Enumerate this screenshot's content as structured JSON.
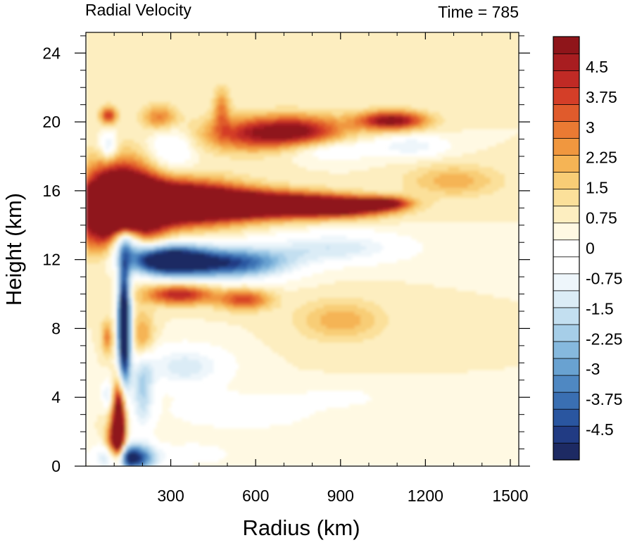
{
  "chart_data": {
    "type": "heatmap",
    "title": "Radial Velocity",
    "subtitle": "Time = 785",
    "xlabel": "Radius (km)",
    "ylabel": "Height (km)",
    "xlim": [
      0,
      1530
    ],
    "ylim": [
      0,
      25.2
    ],
    "xticks": [
      300,
      600,
      900,
      1200,
      1500
    ],
    "yticks": [
      0,
      4,
      8,
      12,
      16,
      20,
      24
    ],
    "y_minor_step": 1,
    "x_minor_step": 100,
    "colorbar": {
      "levels_min": -5.25,
      "levels_max": 5.25,
      "level_step": 0.375,
      "tick_labels": [
        "4.5",
        "3.75",
        "3",
        "2.25",
        "1.5",
        "0.75",
        "0",
        "-0.75",
        "-1.5",
        "-2.25",
        "-3",
        "-3.75",
        "-4.5"
      ],
      "tick_values": [
        4.5,
        3.75,
        3,
        2.25,
        1.5,
        0.75,
        0,
        -0.75,
        -1.5,
        -2.25,
        -3,
        -3.75,
        -4.5
      ],
      "colors": [
        "#1d2a63",
        "#213b83",
        "#2a56a0",
        "#3a6fb2",
        "#4f88c2",
        "#69a2d1",
        "#86b9de",
        "#a6cee8",
        "#c3dff0",
        "#dbecf6",
        "#eef6fb",
        "#ffffff",
        "#ffffff",
        "#fff9e3",
        "#fdeec0",
        "#fbe09a",
        "#f8cd76",
        "#f5b455",
        "#f0973f",
        "#ea7a33",
        "#e05b2c",
        "#d43e28",
        "#c02a25",
        "#a81d20",
        "#8f151a"
      ]
    },
    "features": [
      {
        "r": 120,
        "z": 15.0,
        "sr": 130,
        "sz": 2.3,
        "v": 9.0
      },
      {
        "r": 330,
        "z": 15.3,
        "sr": 220,
        "sz": 1.2,
        "v": 7.0
      },
      {
        "r": 620,
        "z": 15.2,
        "sr": 260,
        "sz": 0.75,
        "v": 6.0
      },
      {
        "r": 900,
        "z": 15.1,
        "sr": 180,
        "sz": 0.55,
        "v": 5.0
      },
      {
        "r": 1060,
        "z": 15.3,
        "sr": 80,
        "sz": 0.35,
        "v": 3.2
      },
      {
        "r": 1300,
        "z": 16.6,
        "sr": 160,
        "sz": 0.9,
        "v": 1.4
      },
      {
        "r": 280,
        "z": 12.0,
        "sr": 150,
        "sz": 0.9,
        "v": -6.5
      },
      {
        "r": 520,
        "z": 11.8,
        "sr": 200,
        "sz": 0.9,
        "v": -4.2
      },
      {
        "r": 880,
        "z": 12.7,
        "sr": 250,
        "sz": 0.9,
        "v": -1.8
      },
      {
        "r": 140,
        "z": 13.2,
        "sr": 60,
        "sz": 1.0,
        "v": -5.0
      },
      {
        "r": 135,
        "z": 8.2,
        "sr": 22,
        "sz": 3.5,
        "v": -7.5
      },
      {
        "r": 118,
        "z": 2.6,
        "sr": 22,
        "sz": 2.2,
        "v": 6.5
      },
      {
        "r": 100,
        "z": 1.2,
        "sr": 30,
        "sz": 1.4,
        "v": 3.5
      },
      {
        "r": 150,
        "z": 0.5,
        "sr": 90,
        "sz": 0.8,
        "v": -5.5
      },
      {
        "r": 330,
        "z": 10.0,
        "sr": 120,
        "sz": 0.6,
        "v": 3.5
      },
      {
        "r": 560,
        "z": 9.7,
        "sr": 90,
        "sz": 0.6,
        "v": 2.8
      },
      {
        "r": 900,
        "z": 8.5,
        "sr": 150,
        "sz": 1.2,
        "v": 1.4
      },
      {
        "r": 580,
        "z": 19.3,
        "sr": 180,
        "sz": 1.0,
        "v": 2.8
      },
      {
        "r": 760,
        "z": 19.5,
        "sr": 160,
        "sz": 0.9,
        "v": 3.2
      },
      {
        "r": 1080,
        "z": 20.1,
        "sr": 120,
        "sz": 0.55,
        "v": 4.3
      },
      {
        "r": 1150,
        "z": 18.6,
        "sr": 120,
        "sz": 0.6,
        "v": -1.5
      },
      {
        "r": 860,
        "z": 18.4,
        "sr": 160,
        "sz": 0.6,
        "v": -1.2
      },
      {
        "r": 80,
        "z": 20.4,
        "sr": 30,
        "sz": 0.5,
        "v": 3.0
      },
      {
        "r": 80,
        "z": 18.6,
        "sr": 30,
        "sz": 0.8,
        "v": -2.0
      },
      {
        "r": 260,
        "z": 20.3,
        "sr": 60,
        "sz": 0.7,
        "v": 2.0
      },
      {
        "r": 480,
        "z": 20.8,
        "sr": 30,
        "sz": 1.2,
        "v": 1.8
      },
      {
        "r": 300,
        "z": 18.4,
        "sr": 80,
        "sz": 1.2,
        "v": -1.4
      },
      {
        "r": 70,
        "z": 15.0,
        "sr": 20,
        "sz": 1.0,
        "v": 2.5
      },
      {
        "r": 350,
        "z": 5.8,
        "sr": 150,
        "sz": 1.2,
        "v": -1.8
      },
      {
        "r": 550,
        "z": 3.2,
        "sr": 250,
        "sz": 1.0,
        "v": -1.0
      },
      {
        "r": 900,
        "z": 4.0,
        "sr": 150,
        "sz": 0.6,
        "v": -0.6
      },
      {
        "r": 380,
        "z": 0.7,
        "sr": 120,
        "sz": 0.6,
        "v": -1.0
      },
      {
        "r": 75,
        "z": 7.5,
        "sr": 20,
        "sz": 1.0,
        "v": 2.0
      },
      {
        "r": 75,
        "z": 4.2,
        "sr": 20,
        "sz": 0.8,
        "v": -1.5
      },
      {
        "r": 200,
        "z": 4.5,
        "sr": 40,
        "sz": 2.5,
        "v": -2.2
      },
      {
        "r": 200,
        "z": 7.5,
        "sr": 40,
        "sz": 1.5,
        "v": 2.0
      }
    ]
  }
}
